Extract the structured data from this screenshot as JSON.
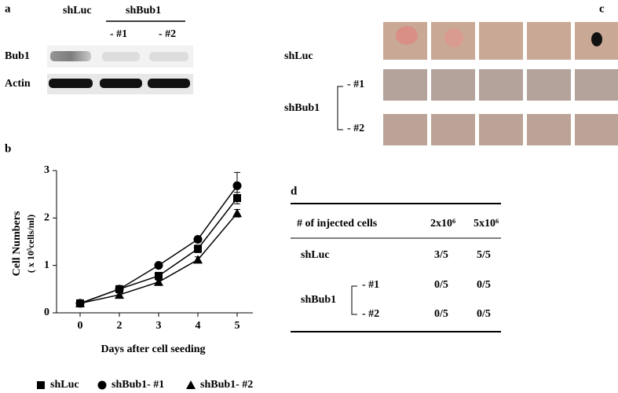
{
  "panel_a": {
    "label": "a",
    "groups": [
      "shLuc",
      "shBub1"
    ],
    "sublabels": [
      "- #1",
      "- #2"
    ],
    "rows": [
      "Bub1",
      "Actin"
    ]
  },
  "panel_c": {
    "label": "c",
    "rows": [
      "shLuc",
      "shBub1"
    ],
    "sublabels": [
      "- #1",
      "- #2"
    ]
  },
  "panel_d": {
    "label": "d",
    "header": [
      "# of injected cells",
      "2x10⁶",
      "5x10⁶"
    ],
    "group": "shBub1",
    "rows": [
      [
        "shLuc",
        "3/5",
        "5/5"
      ],
      [
        "- #1",
        "0/5",
        "0/5"
      ],
      [
        "- #2",
        "0/5",
        "0/5"
      ]
    ]
  },
  "chart_data": {
    "type": "line",
    "panel_label": "b",
    "x_label": "Days after cell seeding",
    "y_label": [
      "Cell Numbers",
      "( x 10⁵cells/ml)"
    ],
    "categories": [
      "0",
      "2",
      "3",
      "4",
      "5"
    ],
    "ylim": [
      0,
      3
    ],
    "yticks": [
      0,
      1,
      2,
      3
    ],
    "series": [
      {
        "name": "shLuc",
        "color": "#000000",
        "marker": "square",
        "values": [
          0.2,
          0.5,
          0.78,
          1.35,
          2.42
        ],
        "errors": [
          0,
          0.05,
          0.05,
          0.08,
          0.12
        ]
      },
      {
        "name": "shBub1- #1",
        "color": "#000000",
        "marker": "circle",
        "values": [
          0.2,
          0.5,
          1.0,
          1.55,
          2.68
        ],
        "errors": [
          0,
          0.05,
          0.04,
          0.06,
          0.28
        ]
      },
      {
        "name": "shBub1- #2",
        "color": "#000000",
        "marker": "triangle",
        "values": [
          0.2,
          0.38,
          0.65,
          1.12,
          2.1
        ],
        "errors": [
          0,
          0.04,
          0.04,
          0.06,
          0.08
        ]
      }
    ]
  }
}
